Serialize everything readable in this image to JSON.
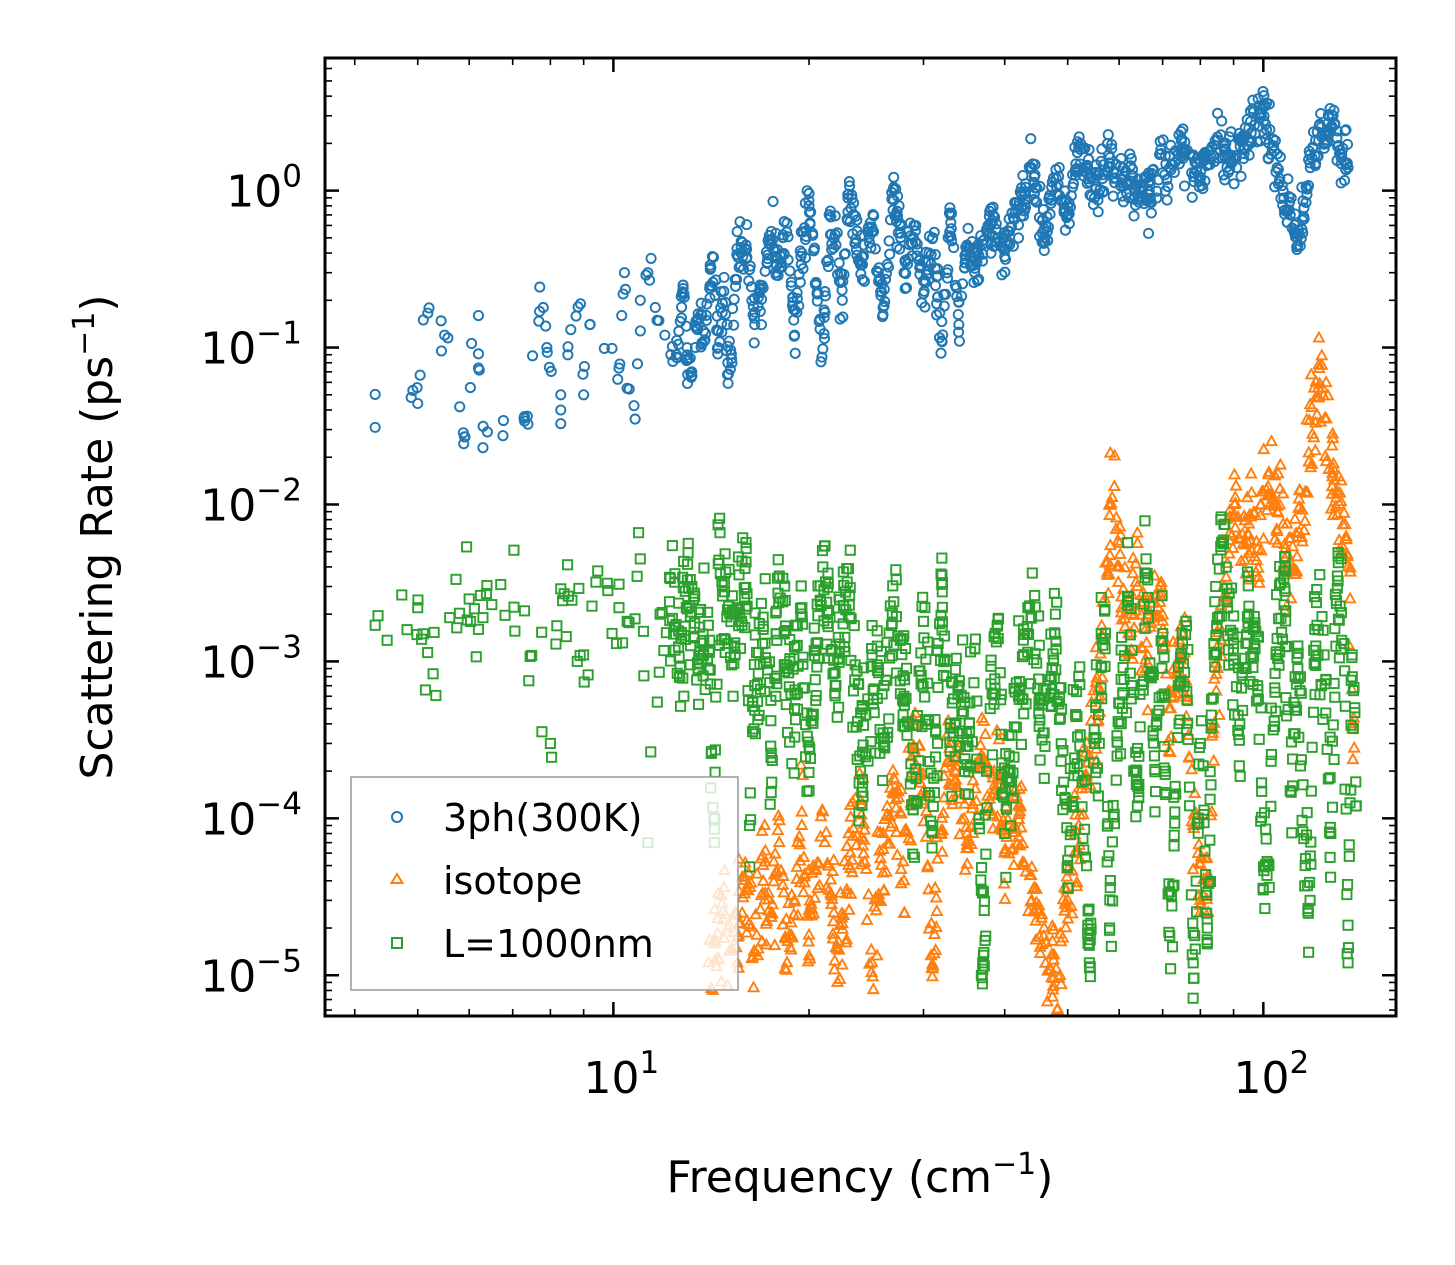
{
  "chart_data": {
    "type": "scatter",
    "title": "",
    "xlabel": "Frequency (cm",
    "xlabel_sup": "−1",
    "xlabel_end": ")",
    "ylabel": "Scattering Rate (ps",
    "ylabel_sup": "−1",
    "ylabel_end": ")",
    "xscale": "log",
    "yscale": "log",
    "xlim": [
      3.6,
      160
    ],
    "ylim": [
      5.5e-06,
      7
    ],
    "grid": false,
    "legend_position": "lower-left",
    "x_tick_labels": [
      {
        "base": "10",
        "exp": "1",
        "value": 10
      },
      {
        "base": "10",
        "exp": "2",
        "value": 100
      }
    ],
    "y_tick_labels": [
      {
        "base": "10",
        "exp": "0",
        "value": 1
      },
      {
        "base": "10",
        "exp": "−1",
        "value": 0.1
      },
      {
        "base": "10",
        "exp": "−2",
        "value": 0.01
      },
      {
        "base": "10",
        "exp": "−3",
        "value": 0.001
      },
      {
        "base": "10",
        "exp": "−4",
        "value": 0.0001
      },
      {
        "base": "10",
        "exp": "−5",
        "value": 1e-05
      }
    ],
    "series": [
      {
        "name": "3ph(300K)",
        "marker": "circle",
        "color": "#1f77b4",
        "points": [
          [
            4.3,
            0.031
          ],
          [
            5.0,
            0.044
          ],
          [
            5.1,
            0.15
          ],
          [
            5.5,
            0.12
          ],
          [
            5.9,
            0.027
          ],
          [
            6.2,
            0.16
          ],
          [
            6.2,
            0.074
          ],
          [
            6.3,
            0.023
          ],
          [
            6.4,
            0.029
          ],
          [
            7.3,
            0.034
          ],
          [
            7.7,
            0.17
          ],
          [
            7.8,
            0.18
          ],
          [
            7.9,
            0.1
          ],
          [
            8.3,
            0.04
          ],
          [
            8.3,
            0.05
          ],
          [
            8.6,
            0.13
          ],
          [
            8.9,
            0.19
          ],
          [
            9.0,
            0.05
          ],
          [
            9.2,
            0.14
          ],
          [
            10.2,
            0.074
          ],
          [
            10.3,
            0.16
          ],
          [
            10.4,
            0.3
          ],
          [
            10.5,
            0.055
          ],
          [
            10.8,
            0.035
          ],
          [
            11.0,
            0.2
          ],
          [
            11.3,
            0.3
          ],
          [
            11.6,
            0.18
          ],
          [
            12.0,
            0.12
          ],
          [
            12.5,
            0.09
          ],
          [
            12.8,
            0.25
          ],
          [
            13.0,
            0.085
          ],
          [
            13.2,
            0.07
          ],
          [
            13.5,
            0.15
          ],
          [
            13.8,
            0.11
          ],
          [
            14.2,
            0.38
          ],
          [
            14.5,
            0.1
          ],
          [
            14.8,
            0.28
          ],
          [
            15.0,
            0.08
          ],
          [
            15.2,
            0.085
          ],
          [
            15.5,
            0.39
          ],
          [
            16.0,
            0.45
          ],
          [
            16.5,
            0.14
          ],
          [
            17.0,
            0.24
          ],
          [
            17.5,
            0.55
          ],
          [
            18.0,
            0.32
          ],
          [
            18.5,
            0.62
          ],
          [
            19.0,
            0.12
          ],
          [
            19.5,
            0.4
          ],
          [
            20.0,
            0.8
          ],
          [
            20.5,
            0.26
          ],
          [
            21.0,
            0.098
          ],
          [
            21.5,
            0.7
          ],
          [
            22.0,
            0.45
          ],
          [
            22.5,
            0.2
          ],
          [
            23.0,
            0.95
          ],
          [
            24.0,
            0.35
          ],
          [
            25.0,
            0.55
          ],
          [
            26.0,
            0.18
          ],
          [
            27.0,
            1.05
          ],
          [
            28.0,
            0.3
          ],
          [
            29.0,
            0.6
          ],
          [
            30.0,
            0.22
          ],
          [
            31.0,
            0.5
          ],
          [
            32.0,
            0.11
          ],
          [
            33.0,
            0.7
          ],
          [
            34.0,
            0.14
          ],
          [
            35.0,
            0.45
          ],
          [
            36.0,
            0.32
          ],
          [
            38.0,
            0.62
          ],
          [
            40.0,
            0.38
          ],
          [
            42.0,
            0.8
          ],
          [
            44.0,
            1.4
          ],
          [
            46.0,
            0.55
          ],
          [
            48.0,
            1.2
          ],
          [
            50.0,
            0.7
          ],
          [
            52.0,
            1.9
          ],
          [
            55.0,
            0.9
          ],
          [
            58.0,
            1.5
          ],
          [
            62.0,
            1.1
          ],
          [
            66.0,
            0.9
          ],
          [
            70.0,
            1.3
          ],
          [
            75.0,
            1.8
          ],
          [
            80.0,
            1.2
          ],
          [
            85.0,
            2.1
          ],
          [
            90.0,
            1.6
          ],
          [
            95.0,
            2.5
          ],
          [
            100.0,
            3.4
          ],
          [
            105.0,
            1.4
          ],
          [
            110.0,
            0.7
          ],
          [
            113.0,
            0.45
          ],
          [
            118.0,
            1.5
          ],
          [
            123.0,
            2.2
          ],
          [
            128.0,
            3.0
          ],
          [
            132.0,
            1.7
          ],
          [
            135.0,
            1.4
          ]
        ]
      },
      {
        "name": "isotope",
        "marker": "triangle",
        "color": "#ff7f0e",
        "points": [
          [
            14.0,
            1.2e-05
          ],
          [
            15.0,
            2e-05
          ],
          [
            16.0,
            3.5e-05
          ],
          [
            16.5,
            1.4e-05
          ],
          [
            17.0,
            5e-05
          ],
          [
            17.5,
            2.5e-05
          ],
          [
            18.0,
            7e-05
          ],
          [
            18.5,
            1.2e-05
          ],
          [
            19.0,
            3e-05
          ],
          [
            19.5,
            9e-05
          ],
          [
            20.0,
            1.8e-05
          ],
          [
            21.0,
            0.00011
          ],
          [
            22.0,
            1.5e-05
          ],
          [
            23.0,
            5e-05
          ],
          [
            24.0,
            0.00013
          ],
          [
            25.0,
            1.2e-05
          ],
          [
            26.0,
            8e-05
          ],
          [
            27.0,
            0.00018
          ],
          [
            28.0,
            4e-05
          ],
          [
            29.0,
            0.00026
          ],
          [
            30.0,
            0.00015
          ],
          [
            31.0,
            1.1e-05
          ],
          [
            32.0,
            0.0001
          ],
          [
            33.0,
            0.0003
          ],
          [
            35.0,
            8e-05
          ],
          [
            37.0,
            0.00022
          ],
          [
            39.0,
            0.00014
          ],
          [
            40.0,
            6e-05
          ],
          [
            42.0,
            0.00012
          ],
          [
            44.0,
            3e-05
          ],
          [
            46.0,
            2e-05
          ],
          [
            48.0,
            1.1e-05
          ],
          [
            50.0,
            3e-05
          ],
          [
            52.0,
            9e-05
          ],
          [
            54.0,
            0.00025
          ],
          [
            56.0,
            0.0006
          ],
          [
            57.0,
            0.0025
          ],
          [
            58.0,
            0.0085
          ],
          [
            59.0,
            0.013
          ],
          [
            60.0,
            0.004
          ],
          [
            62.0,
            0.0015
          ],
          [
            64.0,
            0.003
          ],
          [
            66.0,
            0.0009
          ],
          [
            68.0,
            0.0035
          ],
          [
            70.0,
            0.0018
          ],
          [
            72.0,
            0.0005
          ],
          [
            75.0,
            0.0015
          ],
          [
            78.0,
            9e-05
          ],
          [
            80.0,
            3e-05
          ],
          [
            82.0,
            4e-05
          ],
          [
            85.0,
            0.0009
          ],
          [
            88.0,
            0.0042
          ],
          [
            90.0,
            0.0085
          ],
          [
            92.0,
            0.006
          ],
          [
            95.0,
            0.0075
          ],
          [
            98.0,
            0.0052
          ],
          [
            100.0,
            0.012
          ],
          [
            102.0,
            0.016
          ],
          [
            105.0,
            0.009
          ],
          [
            108.0,
            0.0045
          ],
          [
            112.0,
            0.0038
          ],
          [
            116.0,
            0.012
          ],
          [
            119.0,
            0.028
          ],
          [
            121.0,
            0.048
          ],
          [
            123.0,
            0.077
          ],
          [
            125.0,
            0.035
          ],
          [
            128.0,
            0.017
          ],
          [
            131.0,
            0.01
          ],
          [
            134.0,
            0.006
          ],
          [
            136.0,
            0.0025
          ],
          [
            137.0,
            0.0004
          ],
          [
            138.0,
            0.00028
          ]
        ]
      },
      {
        "name": "L=1000nm",
        "marker": "square",
        "color": "#2ca02c",
        "points": [
          [
            4.3,
            0.0017
          ],
          [
            5.0,
            0.0022
          ],
          [
            5.1,
            0.0015
          ],
          [
            5.6,
            0.0019
          ],
          [
            6.0,
            0.0025
          ],
          [
            6.2,
            0.0016
          ],
          [
            6.3,
            0.0019
          ],
          [
            6.5,
            0.0023
          ],
          [
            7.3,
            0.0021
          ],
          [
            8.0,
            0.0003
          ],
          [
            8.3,
            0.0029
          ],
          [
            8.4,
            0.0027
          ],
          [
            8.8,
            0.001
          ],
          [
            9.0,
            0.0011
          ],
          [
            9.4,
            0.0032
          ],
          [
            10.2,
            0.0022
          ],
          [
            10.5,
            0.0018
          ],
          [
            11.0,
            0.0045
          ],
          [
            11.3,
            7e-05
          ],
          [
            11.8,
            0.002
          ],
          [
            12.2,
            0.0024
          ],
          [
            12.7,
            0.0014
          ],
          [
            13.0,
            0.0033
          ],
          [
            13.5,
            0.0009
          ],
          [
            14.0,
            0.0017
          ],
          [
            14.3,
            7e-05
          ],
          [
            14.5,
            0.0042
          ],
          [
            15.0,
            0.0013
          ],
          [
            15.5,
            0.0022
          ],
          [
            16.0,
            0.0043
          ],
          [
            16.2,
            9e-05
          ],
          [
            16.5,
            0.0007
          ],
          [
            17.0,
            0.0016
          ],
          [
            17.5,
            0.00026
          ],
          [
            18.0,
            0.0035
          ],
          [
            18.5,
            0.0009
          ],
          [
            19.0,
            0.0005
          ],
          [
            19.5,
            0.0022
          ],
          [
            20.0,
            0.00015
          ],
          [
            20.5,
            0.0013
          ],
          [
            21.0,
            0.004
          ],
          [
            22.0,
            0.0007
          ],
          [
            23.0,
            0.0039
          ],
          [
            24.0,
            0.0002
          ],
          [
            25.0,
            0.0011
          ],
          [
            26.0,
            0.00035
          ],
          [
            27.0,
            0.0024
          ],
          [
            28.0,
            0.0006
          ],
          [
            29.0,
            0.00013
          ],
          [
            30.0,
            0.0018
          ],
          [
            31.0,
            9e-05
          ],
          [
            32.0,
            0.0031
          ],
          [
            33.0,
            0.0004
          ],
          [
            34.0,
            0.0007
          ],
          [
            35.0,
            0.00022
          ],
          [
            36.0,
            0.0012
          ],
          [
            37.0,
            1.2e-05
          ],
          [
            38.0,
            0.0005
          ],
          [
            39.0,
            0.0017
          ],
          [
            40.0,
            8e-05
          ],
          [
            42.0,
            0.0006
          ],
          [
            44.0,
            0.0019
          ],
          [
            46.0,
            0.00035
          ],
          [
            48.0,
            0.0012
          ],
          [
            50.0,
            5e-05
          ],
          [
            52.0,
            0.0008
          ],
          [
            54.0,
            1.2e-05
          ],
          [
            55.0,
            0.0003
          ],
          [
            57.0,
            0.0014
          ],
          [
            58.0,
            2e-05
          ],
          [
            60.0,
            0.0004
          ],
          [
            62.0,
            0.0024
          ],
          [
            64.0,
            0.00012
          ],
          [
            66.0,
            0.0045
          ],
          [
            68.0,
            0.00025
          ],
          [
            70.0,
            0.0012
          ],
          [
            72.0,
            1.1e-05
          ],
          [
            74.0,
            0.0007
          ],
          [
            76.0,
            0.0018
          ],
          [
            78.0,
            1.2e-05
          ],
          [
            80.0,
            0.0003
          ],
          [
            82.0,
            2e-05
          ],
          [
            84.0,
            0.0011
          ],
          [
            86.0,
            0.0054
          ],
          [
            88.0,
            0.0024
          ],
          [
            90.0,
            0.0013
          ],
          [
            92.0,
            0.0004
          ],
          [
            95.0,
            0.002
          ],
          [
            98.0,
            0.0007
          ],
          [
            100.0,
            3.5e-05
          ],
          [
            102.0,
            5e-05
          ],
          [
            105.0,
            0.0014
          ],
          [
            108.0,
            0.0028
          ],
          [
            110.0,
            0.00015
          ],
          [
            113.0,
            0.0009
          ],
          [
            116.0,
            5e-05
          ],
          [
            118.0,
            3e-05
          ],
          [
            120.0,
            0.0016
          ],
          [
            124.0,
            0.0011
          ],
          [
            127.0,
            8e-05
          ],
          [
            130.0,
            0.0035
          ],
          [
            133.0,
            0.0013
          ],
          [
            135.0,
            1.2e-05
          ],
          [
            137.0,
            0.0011
          ],
          [
            139.0,
            0.00012
          ]
        ]
      }
    ]
  }
}
